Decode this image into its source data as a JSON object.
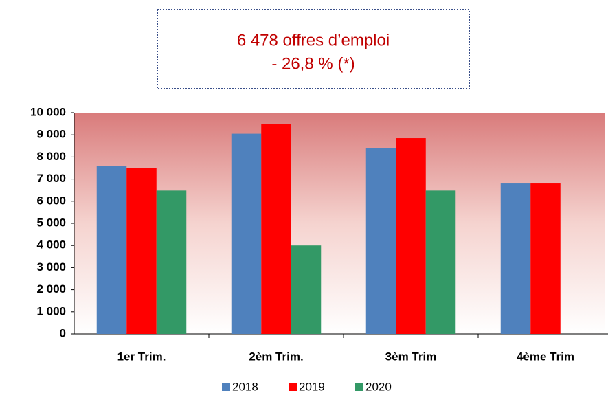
{
  "chart_data": {
    "type": "bar",
    "title": "6 478 offres d’emploi",
    "subtitle": "- 26,8 % (*)",
    "categories": [
      "1er Trim.",
      "2èm Trim.",
      "3èm Trim",
      "4ème Trim"
    ],
    "series": [
      {
        "name": "2018",
        "color": "#4f81bd",
        "values": [
          7600,
          9050,
          8400,
          6800
        ]
      },
      {
        "name": "2019",
        "color": "#ff0000",
        "values": [
          7500,
          9500,
          8850,
          6800
        ]
      },
      {
        "name": "2020",
        "color": "#339966",
        "values": [
          6480,
          4000,
          6480,
          null
        ]
      }
    ],
    "ylim": [
      0,
      10000
    ],
    "yticks": [
      0,
      {
        "value": 1000,
        "label": "1 000"
      },
      {
        "value": 2000,
        "label": "2 000"
      },
      {
        "value": 3000,
        "label": "3 000"
      },
      {
        "value": 4000,
        "label": "4 000"
      },
      {
        "value": 5000,
        "label": "5 000"
      },
      {
        "value": 6000,
        "label": "6 000"
      },
      {
        "value": 7000,
        "label": "7 000"
      },
      {
        "value": 8000,
        "label": "8 000"
      },
      {
        "value": 9000,
        "label": "9 000"
      },
      {
        "value": 10000,
        "label": "10 000"
      }
    ],
    "legend": "bottom"
  }
}
